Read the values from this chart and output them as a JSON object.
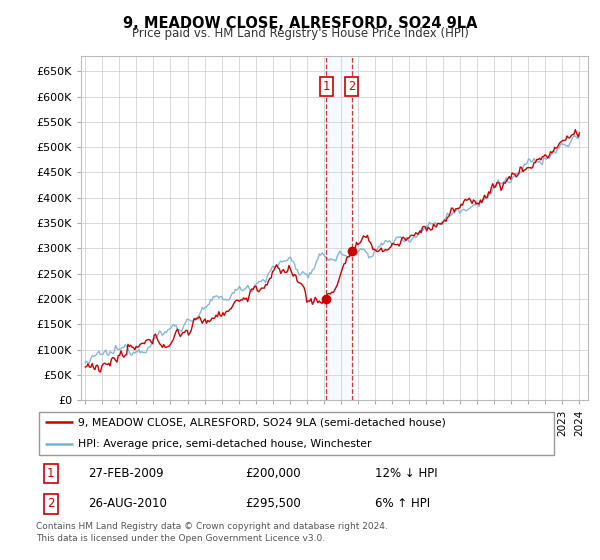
{
  "title": "9, MEADOW CLOSE, ALRESFORD, SO24 9LA",
  "subtitle": "Price paid vs. HM Land Registry's House Price Index (HPI)",
  "ytick_values": [
    0,
    50000,
    100000,
    150000,
    200000,
    250000,
    300000,
    350000,
    400000,
    450000,
    500000,
    550000,
    600000,
    650000
  ],
  "ylim": [
    0,
    680000
  ],
  "xlim_start": 1994.75,
  "xlim_end": 2024.5,
  "legend_line1": "9, MEADOW CLOSE, ALRESFORD, SO24 9LA (semi-detached house)",
  "legend_line2": "HPI: Average price, semi-detached house, Winchester",
  "transaction1_date": "27-FEB-2009",
  "transaction1_price": "£200,000",
  "transaction1_hpi": "12% ↓ HPI",
  "transaction2_date": "26-AUG-2010",
  "transaction2_price": "£295,500",
  "transaction2_hpi": "6% ↑ HPI",
  "footnote": "Contains HM Land Registry data © Crown copyright and database right 2024.\nThis data is licensed under the Open Government Licence v3.0.",
  "line_color_red": "#cc0000",
  "line_color_blue": "#7ab0d4",
  "transaction1_x": 2009.15,
  "transaction1_y": 200000,
  "transaction2_x": 2010.65,
  "transaction2_y": 295500,
  "vline1_x": 2009.15,
  "vline2_x": 2010.65,
  "grid_color": "#cccccc",
  "shade_color": "#ddeeff"
}
